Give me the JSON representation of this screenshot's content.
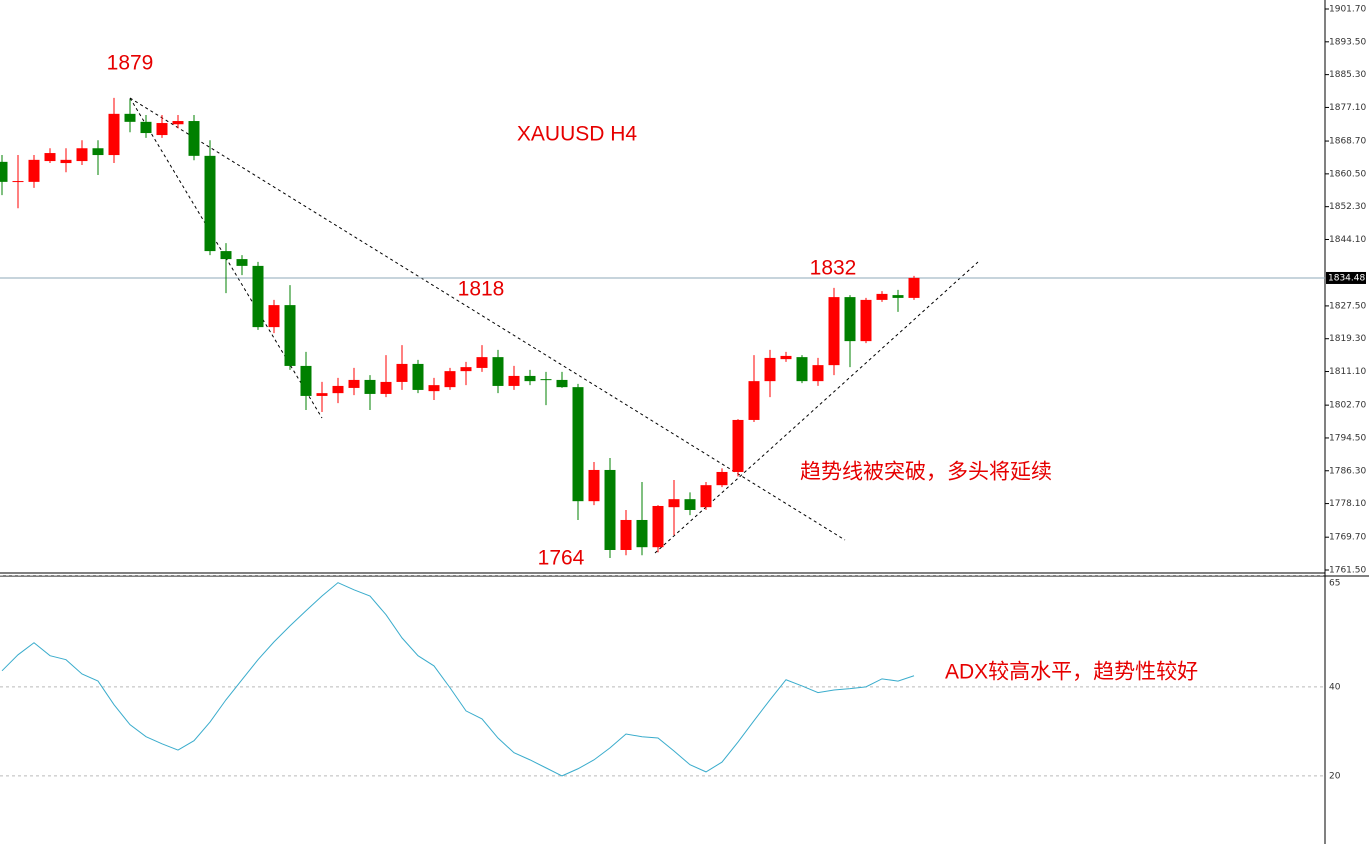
{
  "chart_data": [
    {
      "type": "candlestick",
      "title": "XAUUSD  H4",
      "open": [
        1863.5,
        1858.5,
        1858.5,
        1863.7,
        1863.2,
        1863.7,
        1866.9,
        1865.2,
        1875.5,
        1873.5,
        1870.2,
        1872.9,
        1873.7,
        1865.0,
        1841.2,
        1839.2,
        1837.5,
        1822.2,
        1827.7,
        1812.5,
        1805.0,
        1805.7,
        1807.0,
        1809.0,
        1805.5,
        1808.5,
        1813.0,
        1806.2,
        1807.2,
        1811.2,
        1812.0,
        1814.7,
        1807.5,
        1810.0,
        1809.2,
        1809.0,
        1807.2,
        1778.7,
        1786.5,
        1766.5,
        1774.0,
        1767.2,
        1777.2,
        1779.2,
        1777.2,
        1782.7,
        1786.0,
        1799.0,
        1808.7,
        1814.2,
        1814.7,
        1808.7,
        1812.7,
        1829.7,
        1818.7,
        1829.0,
        1830.2,
        1829.5
      ],
      "high": [
        1865.2,
        1865.2,
        1865.2,
        1866.9,
        1866.9,
        1868.9,
        1868.9,
        1879.5,
        1879.2,
        1875.2,
        1875.2,
        1875.2,
        1875.2,
        1868.9,
        1843.2,
        1840.2,
        1838.5,
        1829.0,
        1832.7,
        1816.0,
        1808.5,
        1809.5,
        1812.0,
        1810.2,
        1815.2,
        1817.7,
        1814.0,
        1809.5,
        1812.0,
        1813.5,
        1817.7,
        1816.5,
        1812.5,
        1811.5,
        1811.0,
        1811.0,
        1808.0,
        1788.5,
        1789.5,
        1776.5,
        1783.5,
        1777.7,
        1784.0,
        1780.9,
        1783.5,
        1786.9,
        1799.2,
        1815.2,
        1816.5,
        1816.0,
        1815.2,
        1814.5,
        1832.0,
        1830.2,
        1829.5,
        1831.2,
        1831.5,
        1835.0
      ],
      "low": [
        1855.2,
        1851.9,
        1857.0,
        1863.2,
        1860.9,
        1862.7,
        1860.2,
        1863.2,
        1870.9,
        1869.5,
        1869.5,
        1871.9,
        1863.9,
        1840.2,
        1830.7,
        1835.2,
        1821.5,
        1820.7,
        1811.5,
        1801.5,
        1801.0,
        1803.2,
        1805.2,
        1801.5,
        1804.7,
        1806.5,
        1805.7,
        1804.0,
        1806.5,
        1807.7,
        1811.0,
        1805.7,
        1806.5,
        1807.7,
        1802.7,
        1807.0,
        1774.0,
        1777.7,
        1764.5,
        1765.2,
        1765.2,
        1765.9,
        1770.2,
        1775.2,
        1776.5,
        1782.2,
        1784.9,
        1798.5,
        1804.7,
        1813.5,
        1808.2,
        1807.5,
        1810.2,
        1812.2,
        1818.2,
        1828.5,
        1826.0,
        1829.0
      ],
      "close": [
        1858.5,
        1858.7,
        1864.0,
        1865.7,
        1864.0,
        1866.9,
        1865.2,
        1875.5,
        1873.5,
        1870.7,
        1873.2,
        1873.7,
        1865.0,
        1841.2,
        1839.2,
        1837.5,
        1822.2,
        1827.7,
        1812.5,
        1805.0,
        1805.7,
        1807.5,
        1809.0,
        1805.5,
        1808.5,
        1813.0,
        1806.5,
        1807.7,
        1811.2,
        1812.2,
        1814.7,
        1807.5,
        1810.0,
        1808.7,
        1809.0,
        1807.2,
        1778.7,
        1786.5,
        1766.5,
        1774.0,
        1767.2,
        1777.5,
        1779.2,
        1776.5,
        1782.7,
        1786.0,
        1799.0,
        1808.7,
        1814.5,
        1815.0,
        1808.7,
        1812.7,
        1829.7,
        1818.7,
        1829.0,
        1830.5,
        1829.5,
        1834.5
      ],
      "up_color": "#ff0000",
      "down_color": "#008000",
      "ylim": [
        1760.75,
        1903.95
      ],
      "yticks": [
        {
          "value": 1901.7,
          "label": "1901.70"
        },
        {
          "value": 1893.5,
          "label": "1893.50"
        },
        {
          "value": 1885.3,
          "label": "1885.30"
        },
        {
          "value": 1877.1,
          "label": "1877.10"
        },
        {
          "value": 1868.7,
          "label": "1868.70"
        },
        {
          "value": 1860.5,
          "label": "1860.50"
        },
        {
          "value": 1852.3,
          "label": "1852.30"
        },
        {
          "value": 1844.1,
          "label": "1844.10"
        },
        {
          "value": 1827.5,
          "label": "1827.50"
        },
        {
          "value": 1819.3,
          "label": "1819.30"
        },
        {
          "value": 1811.1,
          "label": "1811.10"
        },
        {
          "value": 1802.7,
          "label": "1802.70"
        },
        {
          "value": 1794.5,
          "label": "1794.50"
        },
        {
          "value": 1786.3,
          "label": "1786.30"
        },
        {
          "value": 1778.1,
          "label": "1778.10"
        },
        {
          "value": 1769.7,
          "label": "1769.70"
        },
        {
          "value": 1761.5,
          "label": "1761.50"
        }
      ],
      "current_price": 1834.48,
      "annotations": [
        "1879",
        "1818",
        "1832",
        "1764",
        "趋势线被突破，多头将延续"
      ]
    },
    {
      "type": "line",
      "color": "#3aaccc",
      "values": [
        43.6,
        47.2,
        49.9,
        47.0,
        46.1,
        42.9,
        41.3,
        36.0,
        31.5,
        28.8,
        27.2,
        25.8,
        27.9,
        32.1,
        37.1,
        41.6,
        46.1,
        50.1,
        53.7,
        57.1,
        60.4,
        63.4,
        61.8,
        60.4,
        56.2,
        51.0,
        47.0,
        44.7,
        39.8,
        34.6,
        32.8,
        28.5,
        25.2,
        23.6,
        21.8,
        20.0,
        21.6,
        23.6,
        26.3,
        29.4,
        28.8,
        28.5,
        25.6,
        22.5,
        20.9,
        23.1,
        27.6,
        32.4,
        37.1,
        41.6,
        40.2,
        38.7,
        39.3,
        39.6,
        40.0,
        41.8,
        41.3,
        42.5
      ],
      "ylim": [
        4.7,
        64.9
      ],
      "yticks": [
        65,
        40,
        20
      ],
      "grid": true,
      "annotation": "ADX较高水平，趋势性较好"
    }
  ]
}
